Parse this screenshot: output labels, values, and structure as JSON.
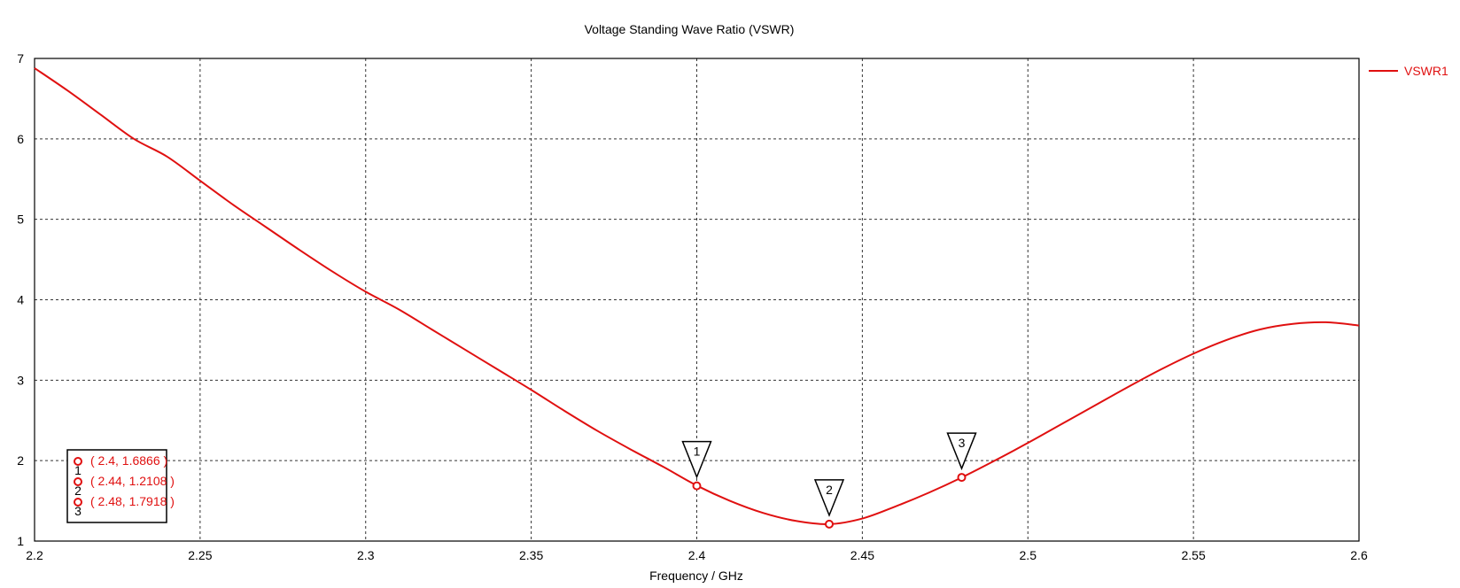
{
  "chart_data": {
    "type": "line",
    "title": "Voltage Standing Wave Ratio (VSWR)",
    "xlabel": "Frequency / GHz",
    "ylabel": "",
    "xlim": [
      2.2,
      2.6
    ],
    "ylim": [
      1,
      7
    ],
    "x_ticks": [
      "2.2",
      "2.25",
      "2.3",
      "2.35",
      "2.4",
      "2.45",
      "2.5",
      "2.55",
      "2.6"
    ],
    "y_ticks": [
      "1",
      "2",
      "3",
      "4",
      "5",
      "6",
      "7"
    ],
    "grid": true,
    "legend_position": "right",
    "series": [
      {
        "name": "VSWR1",
        "color": "#e01010",
        "x": [
          2.2,
          2.21,
          2.22,
          2.23,
          2.24,
          2.25,
          2.26,
          2.27,
          2.28,
          2.29,
          2.3,
          2.31,
          2.32,
          2.33,
          2.34,
          2.35,
          2.36,
          2.37,
          2.38,
          2.39,
          2.4,
          2.41,
          2.42,
          2.43,
          2.44,
          2.45,
          2.46,
          2.47,
          2.48,
          2.49,
          2.5,
          2.51,
          2.52,
          2.53,
          2.54,
          2.55,
          2.56,
          2.57,
          2.58,
          2.59,
          2.6
        ],
        "y": [
          6.88,
          6.6,
          6.3,
          6.0,
          5.78,
          5.48,
          5.18,
          4.9,
          4.62,
          4.35,
          4.1,
          3.88,
          3.63,
          3.38,
          3.13,
          2.88,
          2.62,
          2.37,
          2.14,
          1.92,
          1.69,
          1.5,
          1.35,
          1.25,
          1.21,
          1.28,
          1.43,
          1.6,
          1.79,
          2.0,
          2.22,
          2.45,
          2.68,
          2.91,
          3.13,
          3.33,
          3.5,
          3.63,
          3.7,
          3.72,
          3.68
        ]
      }
    ],
    "markers": [
      {
        "label": "1",
        "x": 2.4,
        "y": 1.6866,
        "text": "( 2.4, 1.6866 )"
      },
      {
        "label": "2",
        "x": 2.44,
        "y": 1.2108,
        "text": "( 2.44, 1.2108 )"
      },
      {
        "label": "3",
        "x": 2.48,
        "y": 1.7918,
        "text": "( 2.48, 1.7918 )"
      }
    ]
  }
}
